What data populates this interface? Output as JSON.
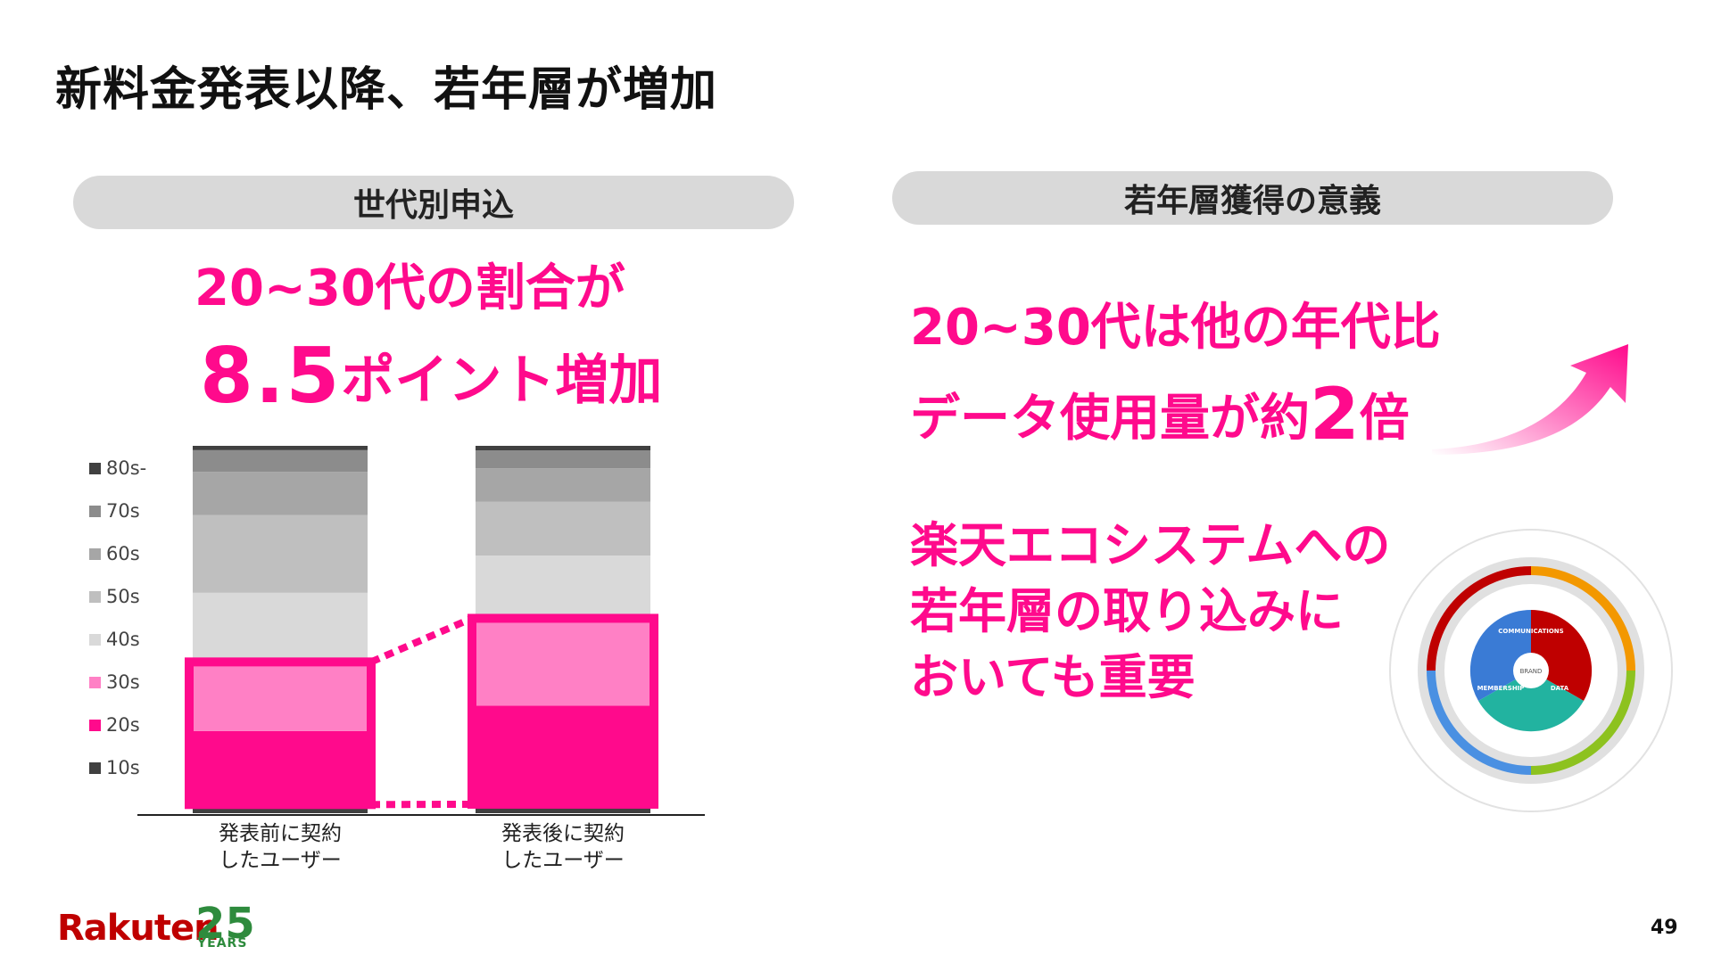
{
  "title": "新料金発表以降、若年層が増加",
  "left_panel": {
    "header": "世代別申込",
    "headline_line1": "20~30代の割合が",
    "headline_big": "8.5",
    "headline_rest": "ポイント増加"
  },
  "right_panel": {
    "header": "若年層獲得の意義",
    "line1": "20~30代は他の年代比",
    "line2_prefix": "データ使用量が約",
    "line2_big": "2",
    "line2_suffix": "倍",
    "line3": "楽天エコシステムへの",
    "line4": "若年層の取り込みに",
    "line5": "おいても重要"
  },
  "ecosystem_wheel": {
    "center": "BRAND",
    "core": [
      "COMMUNICATIONS",
      "DATA",
      "MEMBERSHIP"
    ]
  },
  "chart_data": {
    "type": "bar",
    "stacked": true,
    "categories": [
      "発表前に契約\nしたユーザー",
      "発表後に契約\nしたユーザー"
    ],
    "legend_position": "left",
    "highlight_series": [
      "20s",
      "30s"
    ],
    "series": [
      {
        "name": "10s",
        "color": "#404040",
        "values": [
          2,
          2
        ]
      },
      {
        "name": "20s",
        "color": "#ff0a8c",
        "values": [
          17,
          22
        ]
      },
      {
        "name": "30s",
        "color": "#ff80c5",
        "values": [
          16,
          19.5
        ]
      },
      {
        "name": "40s",
        "color": "#d9d9d9",
        "values": [
          16,
          14
        ]
      },
      {
        "name": "50s",
        "color": "#bfbfbf",
        "values": [
          18,
          12
        ]
      },
      {
        "name": "60s",
        "color": "#a6a6a6",
        "values": [
          10,
          7.5
        ]
      },
      {
        "name": "70s",
        "color": "#8c8c8c",
        "values": [
          5,
          4
        ]
      },
      {
        "name": "80s-",
        "color": "#404040",
        "values": [
          1,
          1
        ]
      }
    ]
  },
  "page_number": "49",
  "logo": {
    "word": "Rakuten",
    "number": "25",
    "years": "YEARS"
  }
}
